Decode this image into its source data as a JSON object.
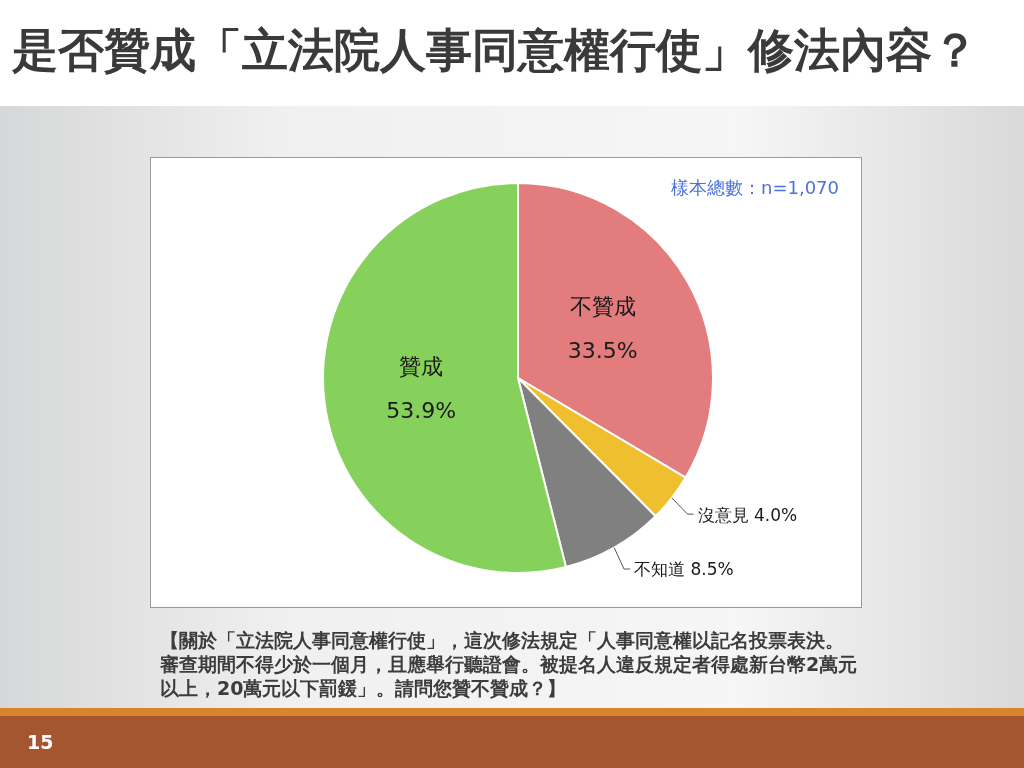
{
  "chart_data": {
    "type": "pie",
    "title": "是否贊成「立法院人事同意權行使」修法內容？",
    "categories": [
      "不贊成",
      "沒意見",
      "不知道",
      "贊成"
    ],
    "values": [
      33.5,
      4.0,
      8.5,
      53.9
    ],
    "colors": [
      "#e37c7c",
      "#f0bf2f",
      "#808080",
      "#86d15b"
    ],
    "value_labels": [
      "33.5%",
      "4.0%",
      "8.5%",
      "53.9%"
    ],
    "annotations": [
      "樣本總數：n=1,070",
      "【關於「立法院人事同意權行使」，這次修法規定「人事同意權以記名投票表決。審查期間不得少於一個月，且應舉行聽證會。被提名人違反規定者得處新台幣2萬元以上，20萬元以下罰鍰」。請問您贊不贊成？】",
      "15"
    ]
  }
}
